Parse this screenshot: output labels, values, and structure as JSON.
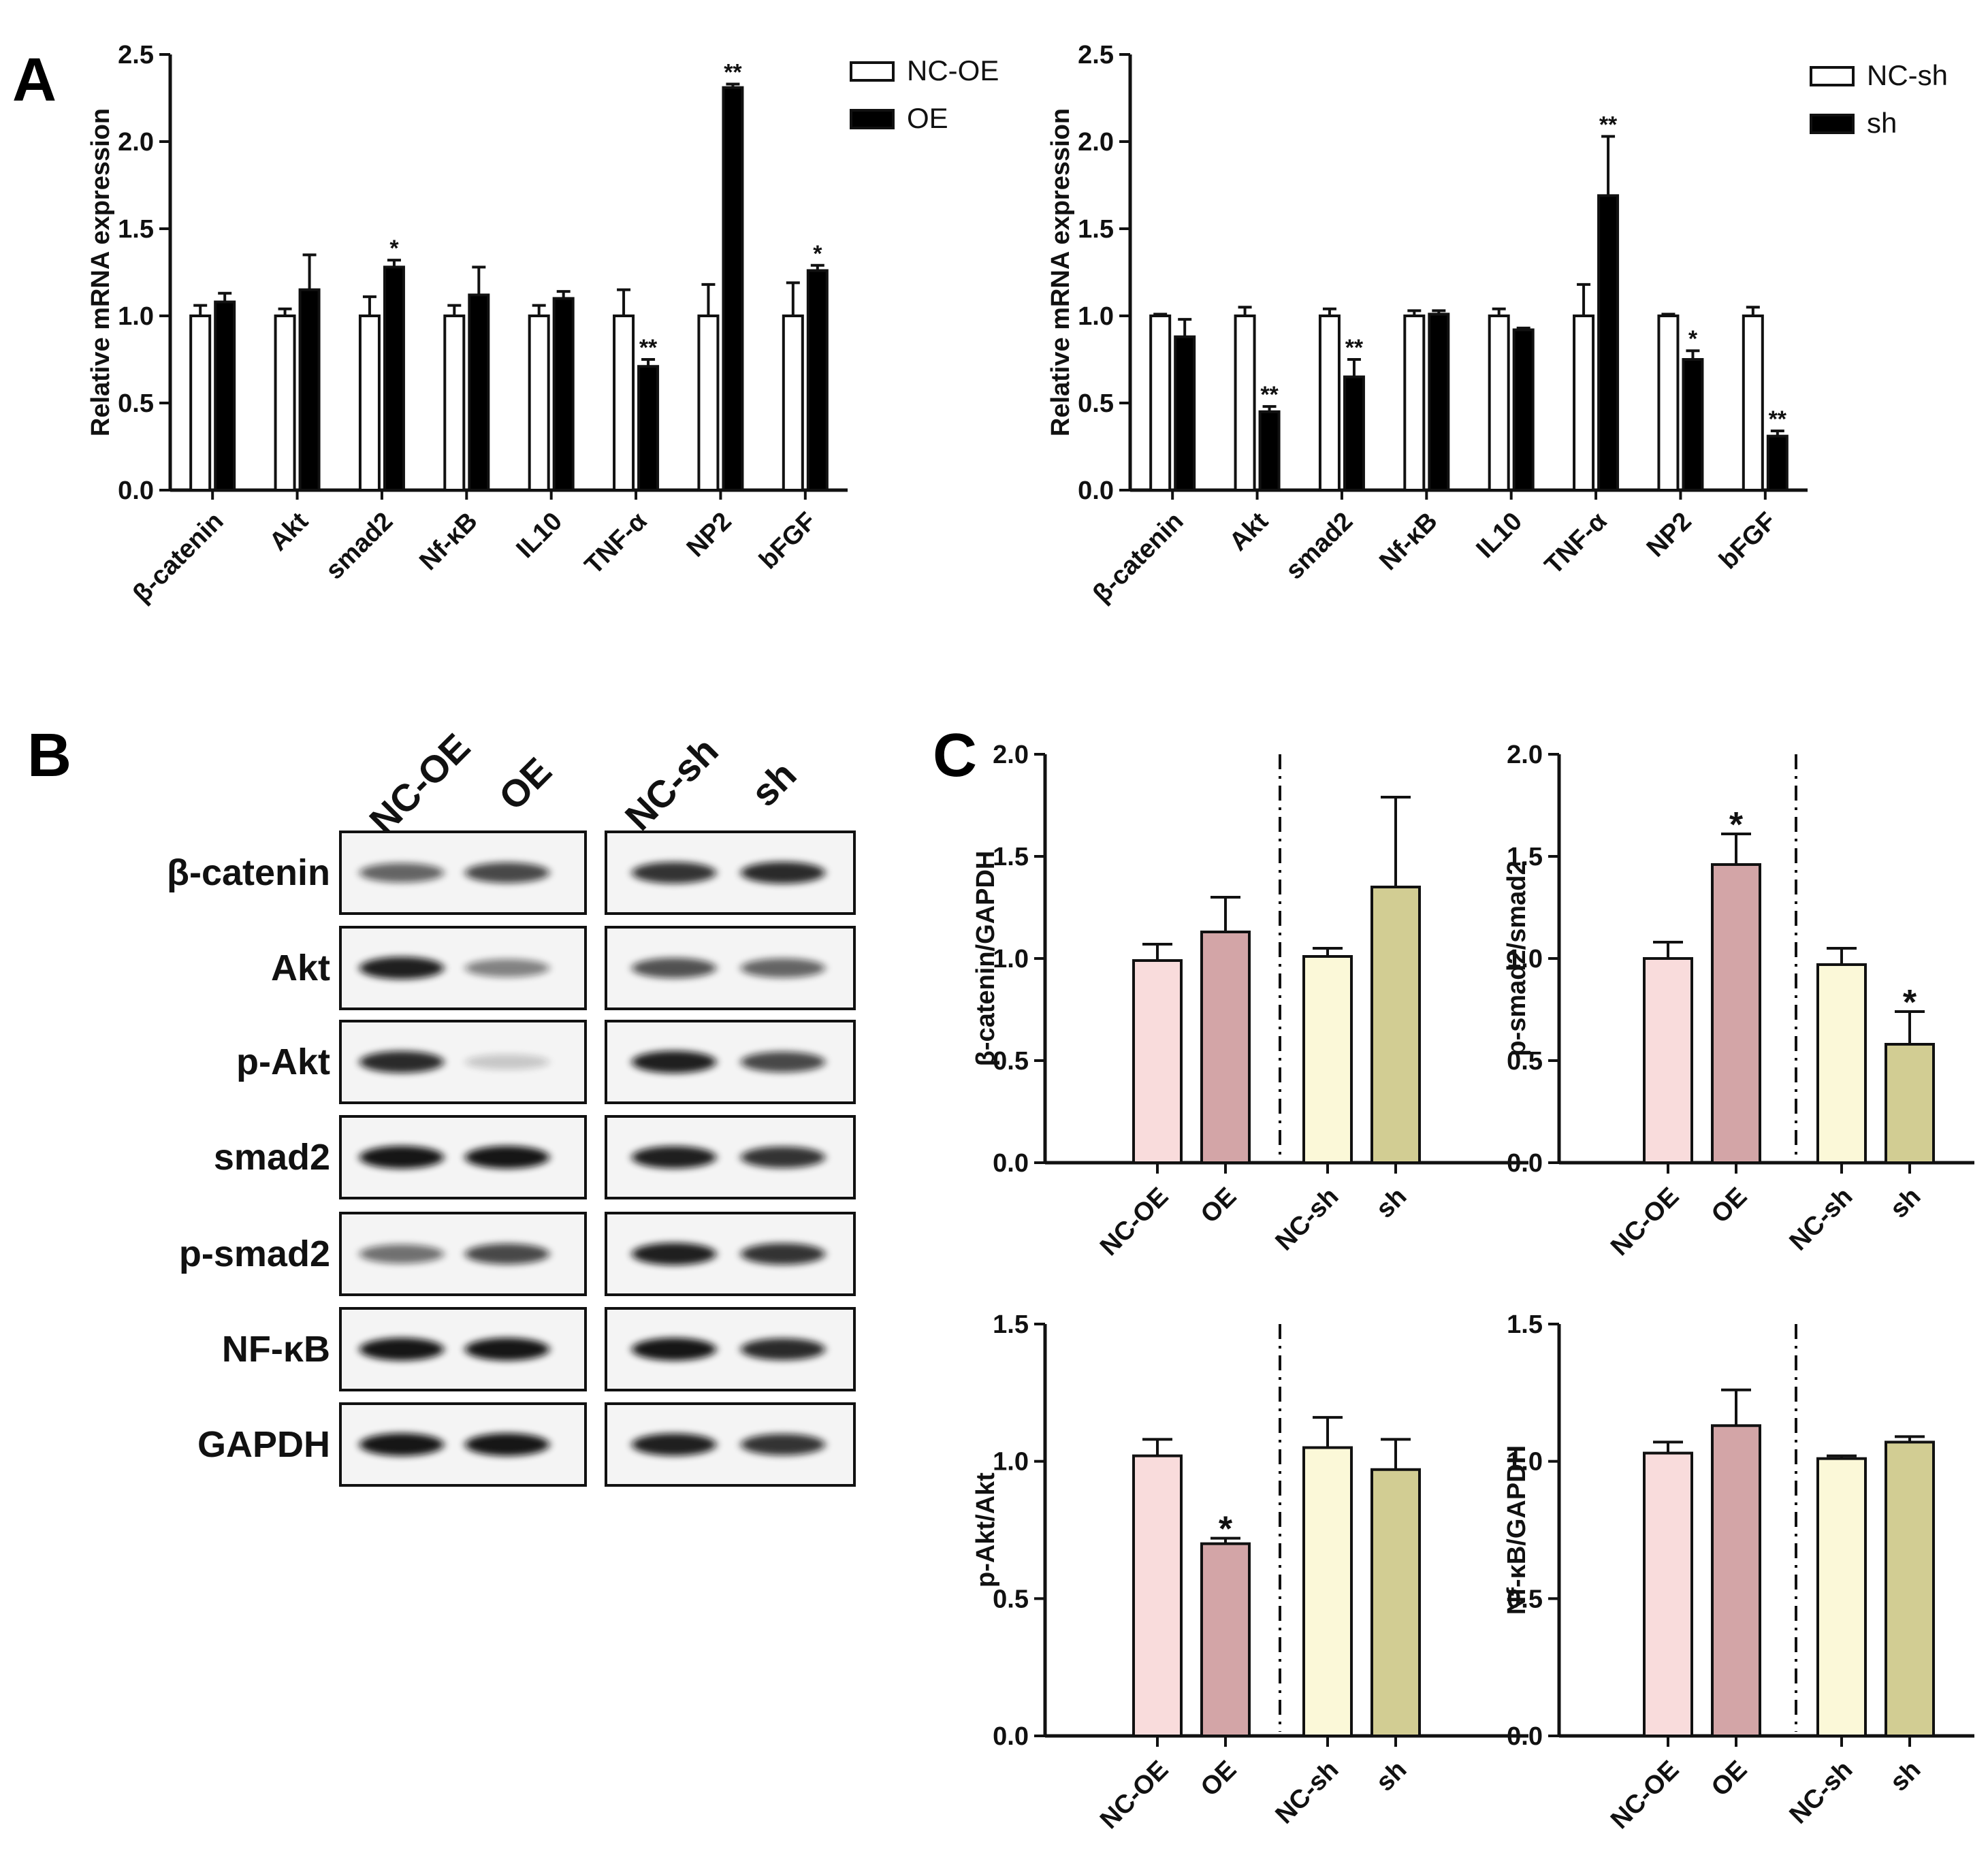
{
  "panels": {
    "a": "A",
    "b": "B",
    "c": "C"
  },
  "chart_data": [
    {
      "id": "A-left",
      "type": "bar",
      "title": "",
      "ylabel": "Relative mRNA expression",
      "ylim": [
        0,
        2.5
      ],
      "yticks": [
        "0.0",
        "0.5",
        "1.0",
        "1.5",
        "2.0",
        "2.5"
      ],
      "categories": [
        "β-catenin",
        "Akt",
        "smad2",
        "Nf-κB",
        "IL10",
        "TNF-α",
        "NP2",
        "bFGF"
      ],
      "legend_position": "top-right",
      "series": [
        {
          "name": "NC-OE",
          "fill": "#ffffff",
          "values": [
            1.0,
            1.0,
            1.0,
            1.0,
            1.0,
            1.0,
            1.0,
            1.0
          ],
          "errors": [
            0.06,
            0.04,
            0.11,
            0.06,
            0.06,
            0.15,
            0.18,
            0.19
          ],
          "sig": [
            "",
            "",
            "",
            "",
            "",
            "",
            "",
            ""
          ]
        },
        {
          "name": "OE",
          "fill": "#000000",
          "values": [
            1.08,
            1.15,
            1.28,
            1.12,
            1.1,
            0.71,
            2.31,
            1.26
          ],
          "errors": [
            0.05,
            0.2,
            0.04,
            0.16,
            0.04,
            0.04,
            0.02,
            0.03
          ],
          "sig": [
            "",
            "",
            "*",
            "",
            "",
            "**",
            "**",
            "*"
          ]
        }
      ]
    },
    {
      "id": "A-right",
      "type": "bar",
      "title": "",
      "ylabel": "Relative mRNA expression",
      "ylim": [
        0,
        2.5
      ],
      "yticks": [
        "0.0",
        "0.5",
        "1.0",
        "1.5",
        "2.0",
        "2.5"
      ],
      "categories": [
        "β-catenin",
        "Akt",
        "smad2",
        "Nf-κB",
        "IL10",
        "TNF-α",
        "NP2",
        "bFGF"
      ],
      "legend_position": "top-right",
      "series": [
        {
          "name": "NC-sh",
          "fill": "#ffffff",
          "values": [
            1.0,
            1.0,
            1.0,
            1.0,
            1.0,
            1.0,
            1.0,
            1.0
          ],
          "errors": [
            0.01,
            0.05,
            0.04,
            0.03,
            0.04,
            0.18,
            0.01,
            0.05
          ],
          "sig": [
            "",
            "",
            "",
            "",
            "",
            "",
            "",
            ""
          ]
        },
        {
          "name": "sh",
          "fill": "#000000",
          "values": [
            0.88,
            0.45,
            0.65,
            1.01,
            0.92,
            1.69,
            0.75,
            0.31
          ],
          "errors": [
            0.1,
            0.03,
            0.1,
            0.02,
            0.01,
            0.34,
            0.05,
            0.03
          ],
          "sig": [
            "",
            "**",
            "**",
            "",
            "",
            "**",
            "*",
            "**"
          ]
        }
      ]
    },
    {
      "id": "C-1",
      "type": "bar",
      "ylabel": "β-catenin/GAPDH",
      "ylim": [
        0,
        2.0
      ],
      "yticks": [
        "0.0",
        "0.5",
        "1.0",
        "1.5",
        "2.0"
      ],
      "categories": [
        "NC-OE",
        "OE",
        "NC-sh",
        "sh"
      ],
      "values": [
        0.99,
        1.13,
        1.01,
        1.35
      ],
      "errors": [
        0.08,
        0.17,
        0.04,
        0.44
      ],
      "colors": [
        "#f9dcdc",
        "#d3a5a7",
        "#fbf8d8",
        "#d2cd93"
      ],
      "sig": [
        "",
        "",
        "",
        ""
      ]
    },
    {
      "id": "C-2",
      "type": "bar",
      "ylabel": "p-smad2/smad2",
      "ylim": [
        0,
        2.0
      ],
      "yticks": [
        "0.0",
        "0.5",
        "1.0",
        "1.5",
        "2.0"
      ],
      "categories": [
        "NC-OE",
        "OE",
        "NC-sh",
        "sh"
      ],
      "values": [
        1.0,
        1.46,
        0.97,
        0.58
      ],
      "errors": [
        0.08,
        0.15,
        0.08,
        0.16
      ],
      "colors": [
        "#f9dcdc",
        "#d3a5a7",
        "#fbf8d8",
        "#d2cd93"
      ],
      "sig": [
        "",
        "*",
        "",
        "*"
      ]
    },
    {
      "id": "C-3",
      "type": "bar",
      "ylabel": "p-Akt/Akt",
      "ylim": [
        0,
        1.5
      ],
      "yticks": [
        "0.0",
        "0.5",
        "1.0",
        "1.5"
      ],
      "categories": [
        "NC-OE",
        "OE",
        "NC-sh",
        "sh"
      ],
      "values": [
        1.02,
        0.7,
        1.05,
        0.97
      ],
      "errors": [
        0.06,
        0.02,
        0.11,
        0.11
      ],
      "colors": [
        "#f9dcdc",
        "#d3a5a7",
        "#fbf8d8",
        "#d2cd93"
      ],
      "sig": [
        "",
        "*",
        "",
        ""
      ]
    },
    {
      "id": "C-4",
      "type": "bar",
      "ylabel": "Nf-κB/GAPDH",
      "ylim": [
        0,
        1.5
      ],
      "yticks": [
        "0.0",
        "0.5",
        "1.0",
        "1.5"
      ],
      "categories": [
        "NC-OE",
        "OE",
        "NC-sh",
        "sh"
      ],
      "values": [
        1.03,
        1.13,
        1.01,
        1.07
      ],
      "errors": [
        0.04,
        0.13,
        0.01,
        0.02
      ],
      "colors": [
        "#f9dcdc",
        "#d3a5a7",
        "#fbf8d8",
        "#d2cd93"
      ],
      "sig": [
        "",
        "",
        "",
        ""
      ]
    }
  ],
  "western_blot": {
    "column_headers": [
      "NC-OE",
      "OE",
      "NC-sh",
      "sh"
    ],
    "rows": [
      {
        "label": "β-catenin",
        "intensity": [
          0.55,
          0.7,
          0.8,
          0.85
        ]
      },
      {
        "label": "Akt",
        "intensity": [
          0.9,
          0.4,
          0.65,
          0.55
        ]
      },
      {
        "label": "p-Akt",
        "intensity": [
          0.85,
          0.05,
          0.9,
          0.7
        ]
      },
      {
        "label": "smad2",
        "intensity": [
          0.95,
          0.95,
          0.9,
          0.8
        ]
      },
      {
        "label": "p-smad2",
        "intensity": [
          0.5,
          0.7,
          0.9,
          0.8
        ]
      },
      {
        "label": "NF-κB",
        "intensity": [
          0.95,
          0.95,
          0.95,
          0.85
        ]
      },
      {
        "label": "GAPDH",
        "intensity": [
          0.95,
          0.95,
          0.9,
          0.8
        ]
      }
    ]
  }
}
